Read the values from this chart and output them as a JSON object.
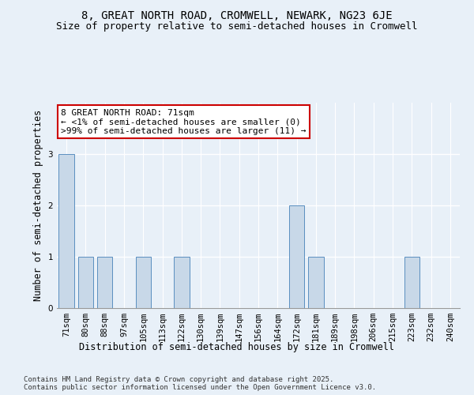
{
  "title": "8, GREAT NORTH ROAD, CROMWELL, NEWARK, NG23 6JE",
  "subtitle": "Size of property relative to semi-detached houses in Cromwell",
  "xlabel": "Distribution of semi-detached houses by size in Cromwell",
  "ylabel": "Number of semi-detached properties",
  "categories": [
    "71sqm",
    "80sqm",
    "88sqm",
    "97sqm",
    "105sqm",
    "113sqm",
    "122sqm",
    "130sqm",
    "139sqm",
    "147sqm",
    "156sqm",
    "164sqm",
    "172sqm",
    "181sqm",
    "189sqm",
    "198sqm",
    "206sqm",
    "215sqm",
    "223sqm",
    "232sqm",
    "240sqm"
  ],
  "values": [
    3,
    1,
    1,
    0,
    1,
    0,
    1,
    0,
    0,
    0,
    0,
    0,
    2,
    1,
    0,
    0,
    0,
    0,
    1,
    0,
    0
  ],
  "bar_color": "#c8d8e8",
  "bar_edge_color": "#5a8fc0",
  "background_color": "#e8f0f8",
  "grid_color": "#ffffff",
  "annotation_line1": "8 GREAT NORTH ROAD: 71sqm",
  "annotation_line2": "← <1% of semi-detached houses are smaller (0)",
  "annotation_line3": ">99% of semi-detached houses are larger (11) →",
  "annotation_box_color": "#ffffff",
  "annotation_box_edge_color": "#cc0000",
  "footer_text": "Contains HM Land Registry data © Crown copyright and database right 2025.\nContains public sector information licensed under the Open Government Licence v3.0.",
  "ylim": [
    0,
    4
  ],
  "yticks": [
    0,
    1,
    2,
    3
  ],
  "title_fontsize": 10,
  "subtitle_fontsize": 9,
  "xlabel_fontsize": 8.5,
  "ylabel_fontsize": 8.5,
  "tick_fontsize": 7.5,
  "annotation_fontsize": 8,
  "footer_fontsize": 6.5
}
